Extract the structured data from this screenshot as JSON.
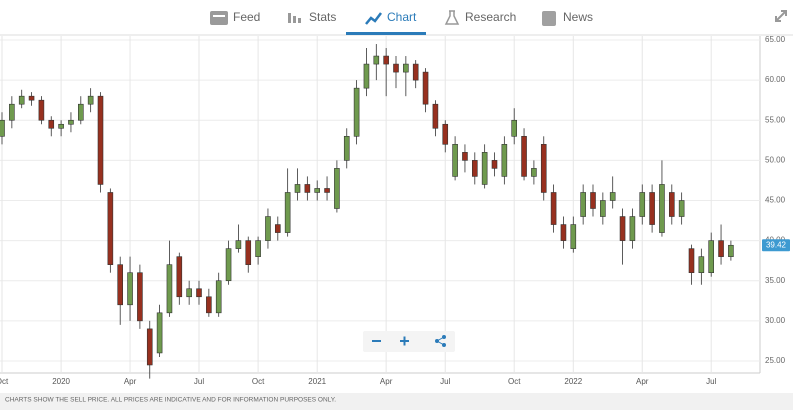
{
  "tabs": [
    "Feed",
    "Stats",
    "Chart",
    "Research",
    "News"
  ],
  "active_tab": 2,
  "disclaimer": "CHARTS SHOW THE SELL PRICE. ALL PRICES ARE INDICATIVE AND FOR INFORMATION PURPOSES ONLY.",
  "chart_data": {
    "type": "candlestick",
    "categories": [
      "Oct",
      null,
      null,
      null,
      null,
      null,
      "2020",
      null,
      null,
      null,
      null,
      null,
      null,
      "Apr",
      null,
      null,
      null,
      null,
      null,
      null,
      "Jul",
      null,
      null,
      null,
      null,
      null,
      "Oct",
      null,
      null,
      null,
      null,
      null,
      "2021",
      null,
      null,
      null,
      null,
      null,
      null,
      "Apr",
      null,
      null,
      null,
      null,
      null,
      "Jul",
      null,
      null,
      null,
      null,
      null,
      null,
      "Oct",
      null,
      null,
      null,
      null,
      null,
      "2022",
      null,
      null,
      null,
      null,
      null,
      null,
      "Apr",
      null,
      null,
      null,
      null,
      null,
      null,
      "Jul",
      null,
      null
    ],
    "open": [
      53,
      55,
      57,
      58,
      57.5,
      55,
      54,
      54.5,
      55,
      57,
      58,
      46,
      37,
      32,
      36,
      29,
      26,
      31,
      38,
      33,
      34,
      33,
      31,
      35,
      39,
      40,
      38,
      40,
      42,
      41,
      46,
      47,
      46,
      46.5,
      44,
      50,
      53,
      59,
      62,
      63,
      62,
      61,
      62,
      61,
      57,
      54.5,
      48,
      51,
      50,
      47,
      50,
      48,
      53,
      53,
      48,
      52,
      46,
      42,
      39,
      43,
      46,
      43,
      45,
      43,
      40,
      43,
      46,
      41,
      46,
      43,
      39,
      36,
      36,
      40,
      38
    ],
    "high": [
      56,
      58,
      58.8,
      58.5,
      58,
      55.5,
      55,
      56,
      58,
      59,
      58.5,
      46.5,
      38,
      38,
      37,
      30,
      32,
      40,
      38.5,
      35,
      35,
      34,
      36,
      40,
      42,
      40.5,
      40.5,
      44,
      43,
      49,
      49,
      48,
      47.5,
      48,
      50,
      54,
      60,
      64,
      64.5,
      64,
      63,
      63,
      62.5,
      61.5,
      57.5,
      55,
      53,
      52,
      51,
      52,
      51,
      53,
      56.5,
      54,
      50,
      53,
      47,
      43,
      43,
      47,
      47,
      46,
      48,
      44,
      44,
      47,
      47,
      50,
      47,
      46,
      39.5,
      39,
      41,
      42,
      40
    ],
    "low": [
      52,
      54,
      56.5,
      56.8,
      54.5,
      53,
      53,
      53.5,
      54.5,
      56,
      46,
      36,
      29.5,
      30,
      29,
      22.8,
      25.5,
      30.5,
      32,
      32,
      32,
      30.5,
      30.5,
      34.5,
      38.5,
      36,
      37,
      39,
      40,
      40.5,
      45,
      45,
      45,
      45,
      43.5,
      49,
      52,
      58,
      60,
      58,
      59,
      58,
      59,
      56,
      53,
      51,
      47.5,
      48.5,
      47,
      46.5,
      48,
      47,
      52,
      47.5,
      47,
      45,
      41,
      39,
      38.5,
      42,
      43,
      42,
      44,
      37,
      39,
      42,
      41,
      40.5,
      42,
      42,
      34.5,
      34.5,
      35.5,
      37,
      37.5
    ],
    "close": [
      55,
      57,
      58,
      57.5,
      55,
      54,
      54.5,
      55,
      57,
      58,
      47,
      37,
      32,
      36,
      30,
      24.5,
      31,
      37,
      33,
      34,
      33,
      31,
      35,
      39,
      40,
      37,
      40,
      43,
      41,
      46,
      47,
      46,
      46.5,
      46,
      49,
      53,
      59,
      62,
      63,
      62,
      61,
      62,
      60,
      57,
      54,
      52,
      52,
      50,
      48,
      51,
      49,
      52,
      55,
      48,
      49,
      46,
      42,
      40,
      42,
      46,
      44,
      45,
      46,
      40,
      43,
      46,
      42,
      47,
      43,
      45,
      36,
      38,
      40,
      38,
      39.42
    ],
    "up_color": "#6f9a4e",
    "down_color": "#97301f",
    "ylim": [
      23.5,
      65.5
    ],
    "yticks": [
      {
        "value": 25,
        "label": "25.00"
      },
      {
        "value": 30,
        "label": "30.00"
      },
      {
        "value": 35,
        "label": "35.00"
      },
      {
        "value": 40,
        "label": "40.00"
      },
      {
        "value": 45,
        "label": "45.00"
      },
      {
        "value": 50,
        "label": "50.00"
      },
      {
        "value": 55,
        "label": "55.00"
      },
      {
        "value": 60,
        "label": "60.00"
      },
      {
        "value": 65,
        "label": "65.00"
      }
    ],
    "last_price": 39.42,
    "grid": true
  }
}
